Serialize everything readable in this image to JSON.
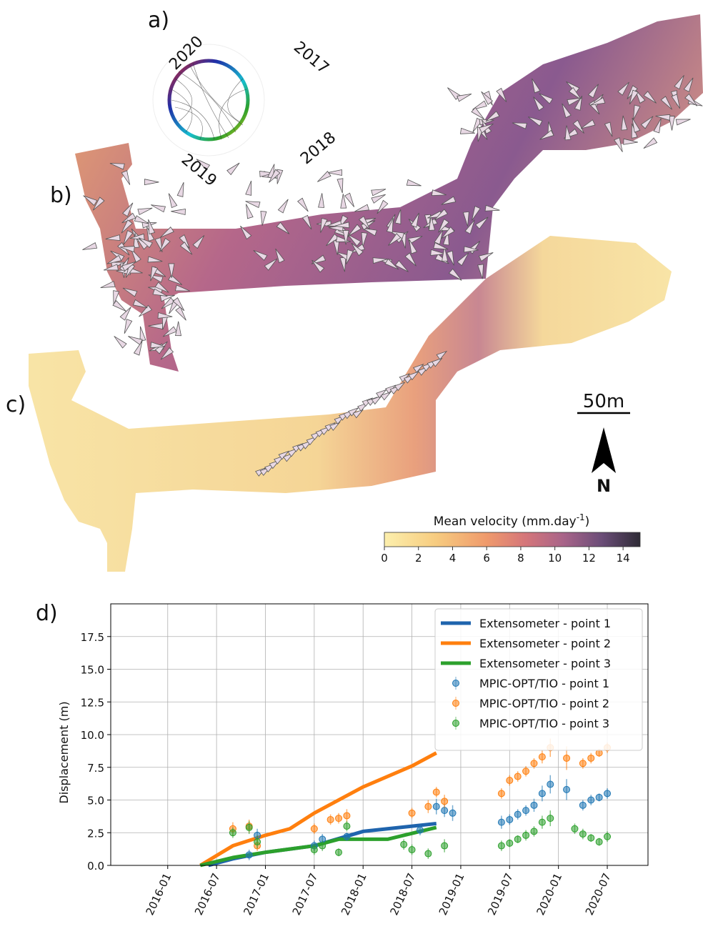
{
  "figure": {
    "panel_labels": [
      "a)",
      "b)",
      "c)",
      "d)"
    ],
    "years": [
      "2017",
      "2018",
      "2019",
      "2020"
    ],
    "scale_bar": "50m",
    "north": "N",
    "colorbar": {
      "title": [
        "Mean velocity (mm.day",
        "-1",
        ")"
      ],
      "lim": [
        0,
        15
      ],
      "ticks": [
        0,
        2,
        4,
        6,
        8,
        10,
        12,
        14
      ]
    }
  },
  "chart_data": {
    "type": "line",
    "ylabel": "Displacement (m)",
    "xlim": [
      "2015-06",
      "2020-12"
    ],
    "xticks": [
      "2016-01",
      "2016-07",
      "2017-01",
      "2017-07",
      "2018-01",
      "2018-07",
      "2019-01",
      "2019-07",
      "2020-01",
      "2020-07"
    ],
    "ylim": [
      0,
      20
    ],
    "yticks": [
      {
        "value": 0,
        "label": "0.0"
      },
      {
        "value": 2.5,
        "label": "2.5"
      },
      {
        "value": 5,
        "label": "5.0"
      },
      {
        "value": 7.5,
        "label": "7.5"
      },
      {
        "value": 10,
        "label": "10.0"
      },
      {
        "value": 12.5,
        "label": "12.5"
      },
      {
        "value": 15,
        "label": "15.0"
      },
      {
        "value": 17.5,
        "label": "17.5"
      }
    ],
    "grid": true,
    "legend": "upper right",
    "series": [
      {
        "name": "Extensometer - point 1",
        "color": "#1f64ad",
        "style": "line",
        "x": [
          "2016-06",
          "2016-09",
          "2017-01",
          "2017-07",
          "2018-01",
          "2018-07",
          "2018-10"
        ],
        "values": [
          0,
          0.5,
          1.0,
          1.5,
          2.6,
          3.0,
          3.2
        ]
      },
      {
        "name": "Extensometer - point 2",
        "color": "#ff7f0e",
        "style": "line",
        "x": [
          "2016-05",
          "2016-09",
          "2017-01",
          "2017-04",
          "2017-07",
          "2018-01",
          "2018-07",
          "2018-10"
        ],
        "values": [
          0,
          1.5,
          2.3,
          2.8,
          4.0,
          6.0,
          7.6,
          8.6
        ]
      },
      {
        "name": "Extensometer - point 3",
        "color": "#2ca02c",
        "style": "line",
        "x": [
          "2016-05",
          "2016-09",
          "2017-01",
          "2017-07",
          "2017-10",
          "2018-04",
          "2018-10"
        ],
        "values": [
          0,
          0.6,
          1.0,
          1.5,
          2.0,
          2.0,
          2.9
        ]
      },
      {
        "name": "MPIC-OPT/TIO - point 1",
        "color": "#1f77b4",
        "style": "errorbar",
        "x": [
          "2016-11",
          "2016-12",
          "2017-07",
          "2017-08",
          "2017-11",
          "2018-08",
          "2018-10",
          "2018-11",
          "2018-12",
          "2019-06",
          "2019-07",
          "2019-08",
          "2019-09",
          "2019-10",
          "2019-11",
          "2019-12",
          "2020-02",
          "2020-04",
          "2020-05",
          "2020-06",
          "2020-07"
        ],
        "values": [
          0.8,
          2.3,
          1.5,
          2.0,
          2.2,
          2.7,
          4.5,
          4.2,
          4.0,
          3.3,
          3.5,
          3.9,
          4.2,
          4.6,
          5.5,
          6.2,
          5.8,
          4.6,
          5.0,
          5.2,
          5.5
        ],
        "errors": [
          0.4,
          0.5,
          0.4,
          0.4,
          0.3,
          0.4,
          0.6,
          0.5,
          0.6,
          0.5,
          0.4,
          0.4,
          0.4,
          0.5,
          0.6,
          0.7,
          0.8,
          0.4,
          0.4,
          0.3,
          0.4
        ]
      },
      {
        "name": "MPIC-OPT/TIO - point 2",
        "color": "#ff7f0e",
        "style": "errorbar",
        "x": [
          "2016-09",
          "2016-11",
          "2016-12",
          "2017-07",
          "2017-09",
          "2017-10",
          "2017-11",
          "2018-07",
          "2018-09",
          "2018-10",
          "2018-11",
          "2019-06",
          "2019-07",
          "2019-08",
          "2019-09",
          "2019-10",
          "2019-11",
          "2019-12",
          "2020-02",
          "2020-04",
          "2020-05",
          "2020-06",
          "2020-07"
        ],
        "values": [
          2.8,
          3.0,
          1.5,
          2.8,
          3.5,
          3.6,
          3.8,
          4.0,
          4.5,
          5.6,
          4.9,
          5.5,
          6.5,
          6.8,
          7.2,
          7.8,
          8.3,
          9.0,
          8.2,
          7.8,
          8.2,
          8.6,
          9.0
        ],
        "errors": [
          0.5,
          0.5,
          0.4,
          0.4,
          0.4,
          0.4,
          0.5,
          0.4,
          0.5,
          0.4,
          0.5,
          0.4,
          0.4,
          0.4,
          0.4,
          0.4,
          0.5,
          0.7,
          0.9,
          0.4,
          0.4,
          0.3,
          0.4
        ]
      },
      {
        "name": "MPIC-OPT/TIO - point 3",
        "color": "#2ca02c",
        "style": "errorbar",
        "x": [
          "2016-09",
          "2016-11",
          "2016-12",
          "2017-07",
          "2017-08",
          "2017-10",
          "2017-11",
          "2018-06",
          "2018-07",
          "2018-09",
          "2018-11",
          "2019-06",
          "2019-07",
          "2019-08",
          "2019-09",
          "2019-10",
          "2019-11",
          "2019-12",
          "2020-03",
          "2020-04",
          "2020-05",
          "2020-06",
          "2020-07"
        ],
        "values": [
          2.5,
          2.9,
          1.8,
          1.2,
          1.5,
          1.0,
          3.0,
          1.6,
          1.2,
          0.9,
          1.5,
          1.5,
          1.7,
          2.0,
          2.3,
          2.6,
          3.3,
          3.6,
          2.8,
          2.4,
          2.1,
          1.8,
          2.2
        ],
        "errors": [
          0.4,
          0.5,
          0.5,
          0.4,
          0.4,
          0.3,
          0.4,
          0.4,
          0.4,
          0.4,
          0.5,
          0.4,
          0.3,
          0.3,
          0.4,
          0.4,
          0.5,
          0.6,
          0.4,
          0.4,
          0.3,
          0.3,
          0.4
        ]
      }
    ]
  }
}
